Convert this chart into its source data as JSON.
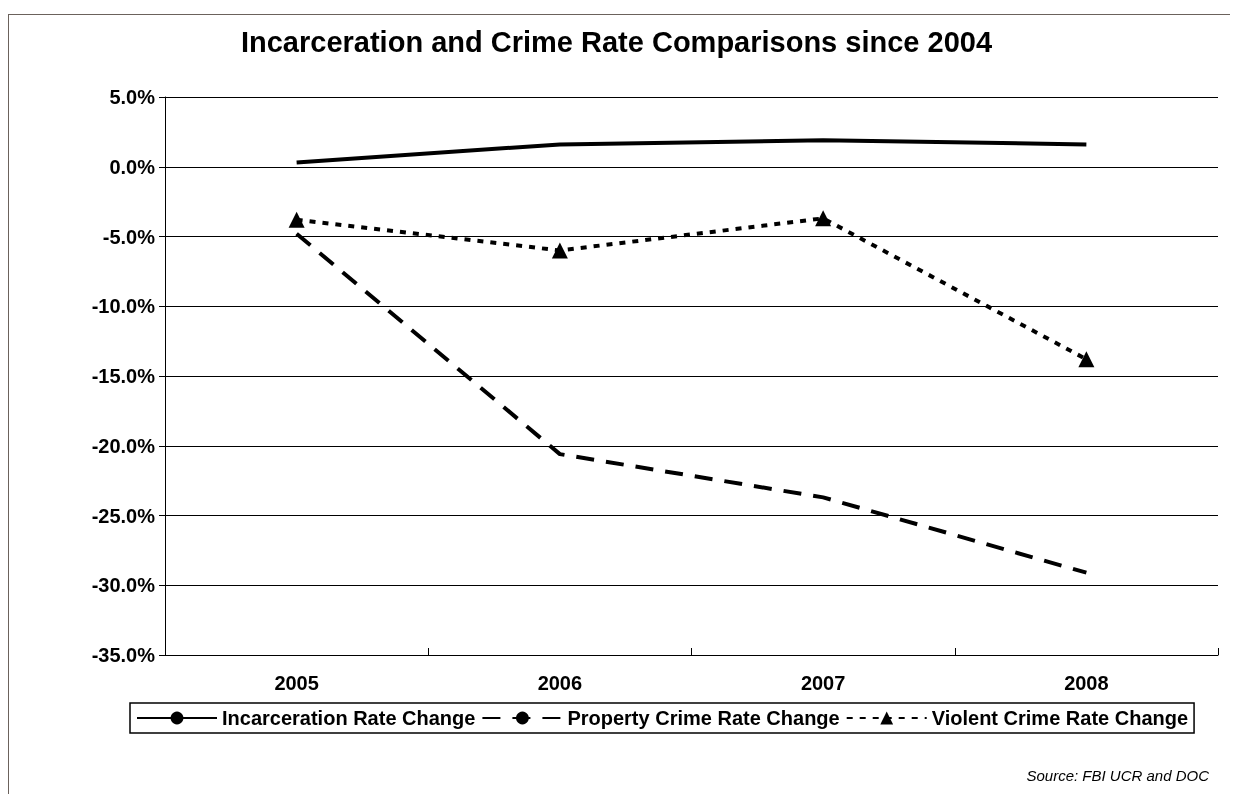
{
  "chart_data": {
    "type": "line",
    "title": "Incarceration and Crime Rate Comparisons since 2004",
    "categories": [
      "2005",
      "2006",
      "2007",
      "2008"
    ],
    "series": [
      {
        "name": "Incarceration Rate Change",
        "color": "#000000",
        "line_style": "solid",
        "marker": "none",
        "values": [
          0.3,
          1.6,
          1.9,
          1.6
        ]
      },
      {
        "name": "Property Crime Rate Change",
        "color": "#000000",
        "line_style": "dashed",
        "marker": "none",
        "values": [
          -4.8,
          -20.6,
          -23.7,
          -29.1
        ]
      },
      {
        "name": "Violent Crime Rate Change",
        "color": "#000000",
        "line_style": "dotted",
        "marker": "triangle",
        "values": [
          -3.8,
          -6.0,
          -3.7,
          -13.8
        ]
      }
    ],
    "ylim": [
      -35,
      5
    ],
    "yticks": [
      {
        "value": -35,
        "label": "-35.0%"
      },
      {
        "value": -30,
        "label": "-30.0%"
      },
      {
        "value": -25,
        "label": "-25.0%"
      },
      {
        "value": -20,
        "label": "-20.0%"
      },
      {
        "value": -15,
        "label": "-15.0%"
      },
      {
        "value": -10,
        "label": "-10.0%"
      },
      {
        "value": -5,
        "label": "-5.0%"
      },
      {
        "value": 0,
        "label": "0.0%"
      },
      {
        "value": 5,
        "label": "5.0%"
      }
    ],
    "grid": "y",
    "legend": "bottom",
    "annotations": [
      "Source: FBI UCR and DOC"
    ]
  }
}
